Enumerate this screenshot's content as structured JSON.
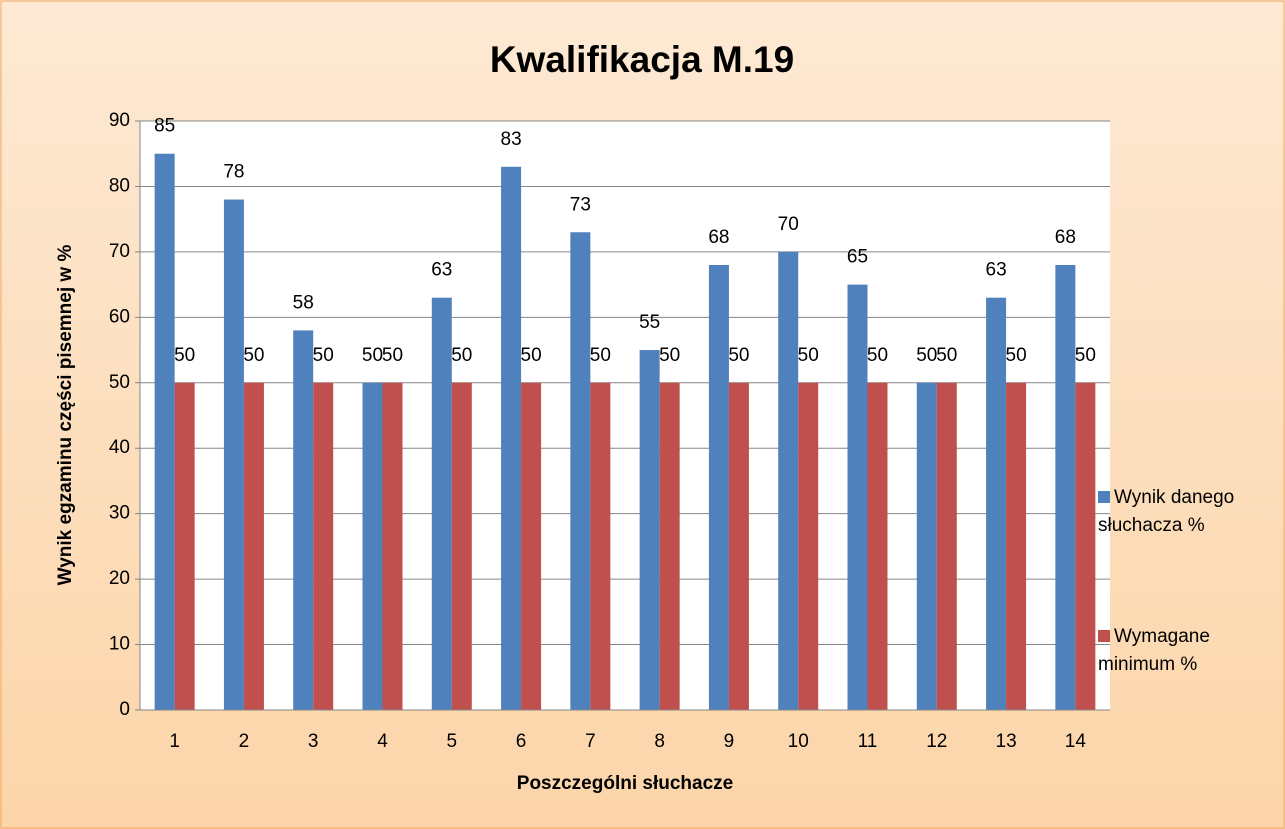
{
  "chart_data": {
    "type": "bar",
    "title": "Kwalifikacja M.19",
    "x_label": "Poszczególni słuchacze",
    "y_label": "Wynik egzaminu części pisemnej w %",
    "categories": [
      "1",
      "2",
      "3",
      "4",
      "5",
      "6",
      "7",
      "8",
      "9",
      "10",
      "11",
      "12",
      "13",
      "14"
    ],
    "series": [
      {
        "name": "Wynik danego słuchacza %",
        "color": "#4f81bd",
        "values": [
          85,
          78,
          58,
          50,
          63,
          83,
          73,
          55,
          68,
          70,
          65,
          50,
          63,
          68
        ]
      },
      {
        "name": "Wymagane minimum %",
        "color": "#c0504d",
        "values": [
          50,
          50,
          50,
          50,
          50,
          50,
          50,
          50,
          50,
          50,
          50,
          50,
          50,
          50
        ]
      }
    ],
    "ylim": [
      0,
      90
    ],
    "yticks": [
      0,
      10,
      20,
      30,
      40,
      50,
      60,
      70,
      80,
      90
    ],
    "grid": true,
    "legend": "right"
  }
}
